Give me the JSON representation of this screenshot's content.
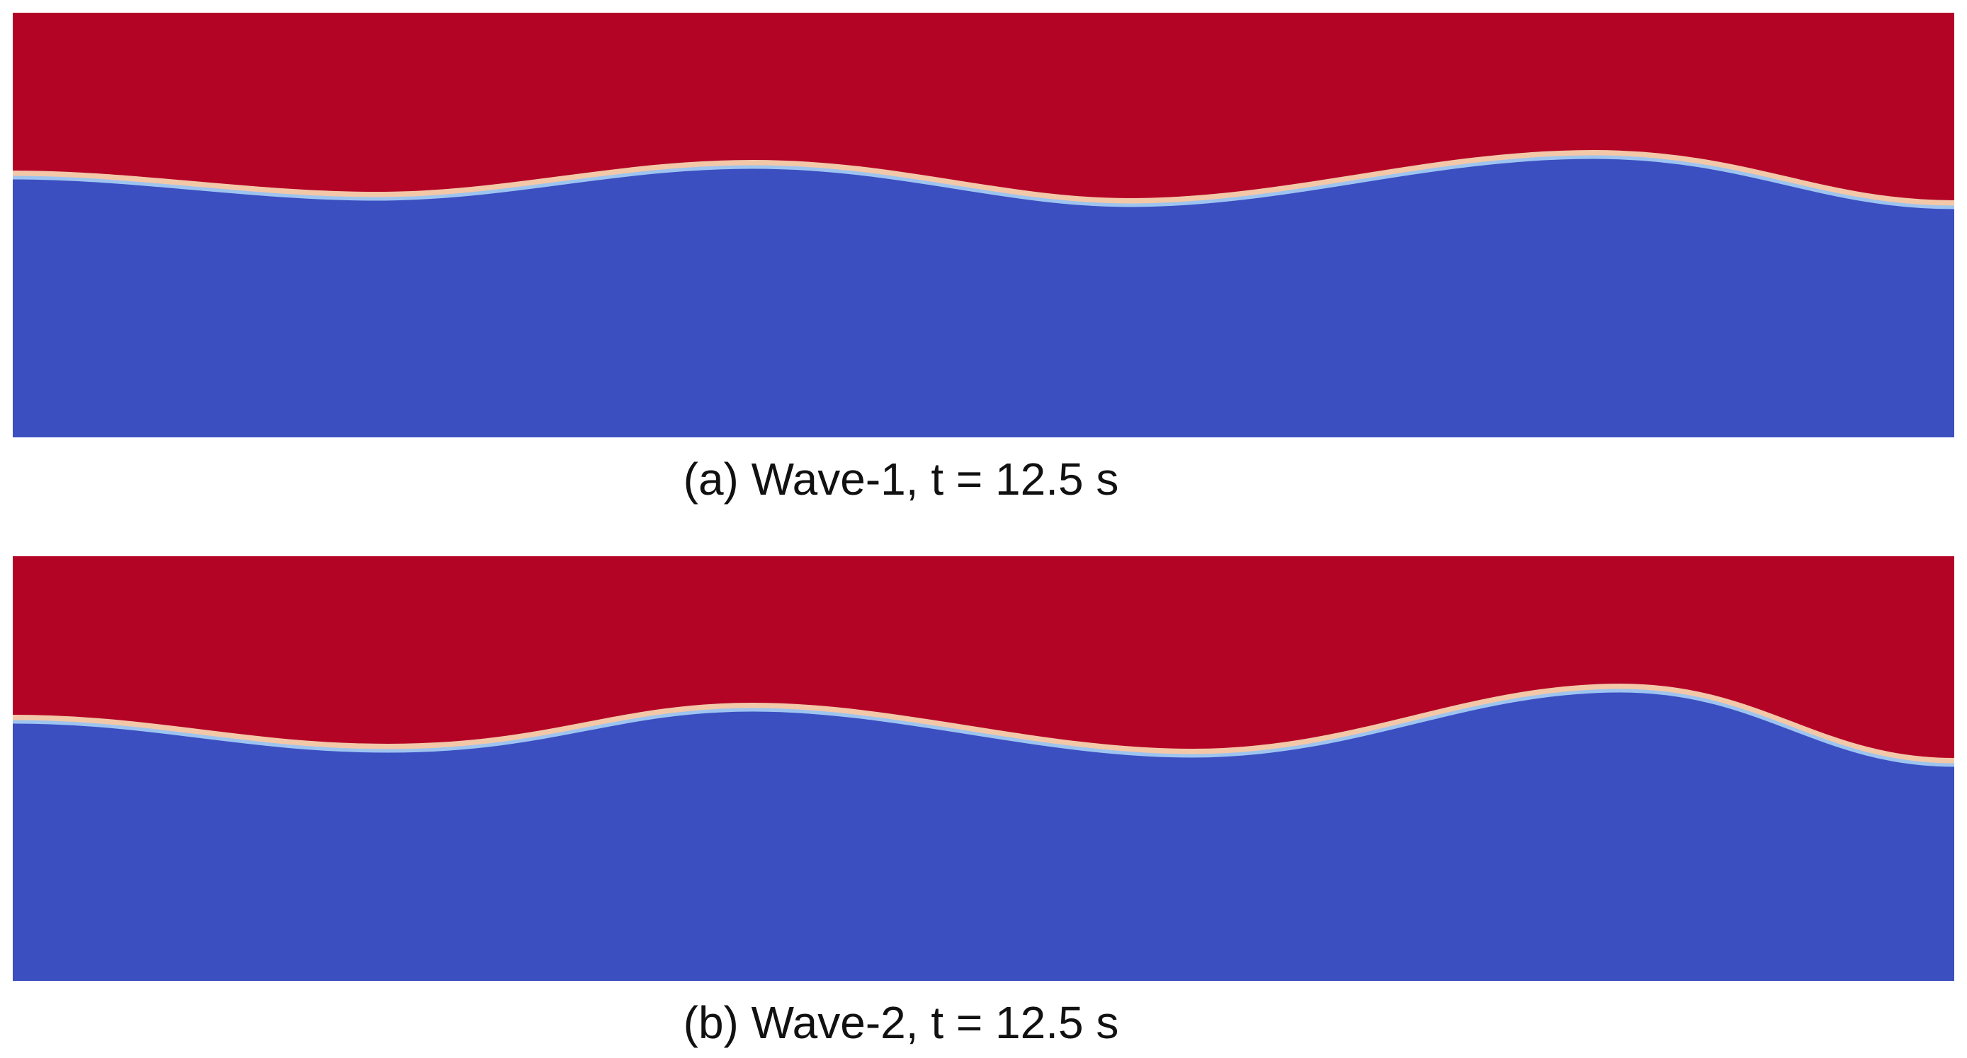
{
  "panels": [
    {
      "caption": "(a) Wave-1, t = 12.5 s"
    },
    {
      "caption": "(b) Wave-2, t = 12.5 s"
    }
  ]
}
